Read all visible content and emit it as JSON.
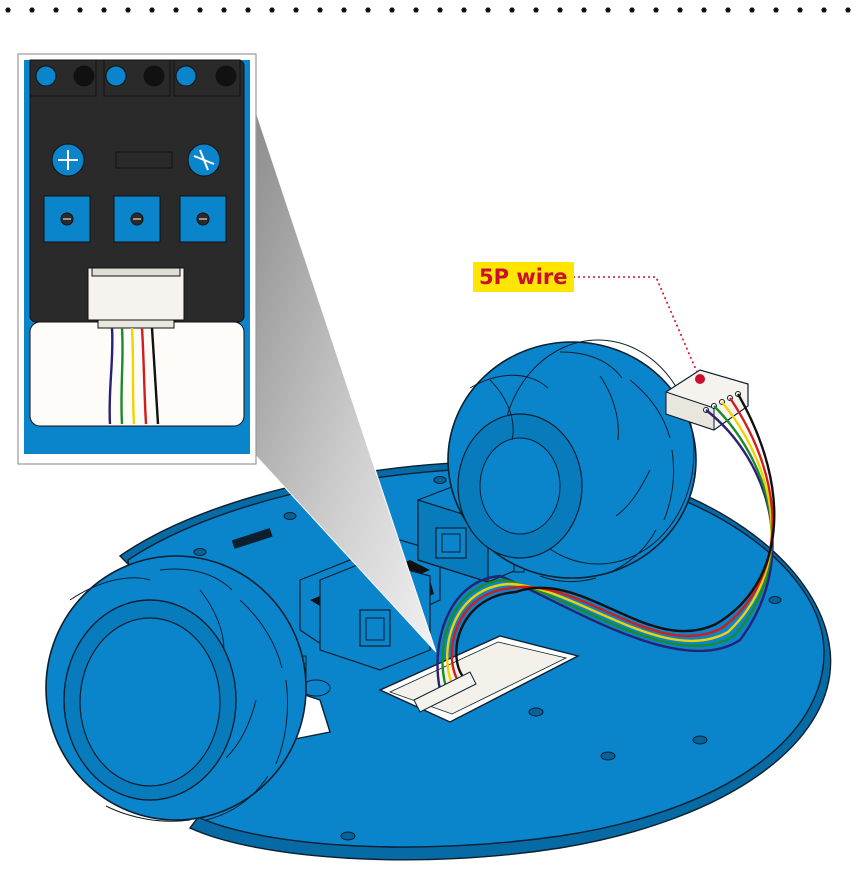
{
  "callout": {
    "label": "5P wire",
    "color": "#c8102e",
    "background": "#ffe500"
  },
  "colors": {
    "chassis_blue": "#0a85cc",
    "outline": "#0b1f2e",
    "module_dark": "#2a2a2a",
    "connector_white": "#f5f3ee"
  },
  "wire_colors": [
    "#2a2172",
    "#1a8a2a",
    "#f2d200",
    "#d11d1d",
    "#111111"
  ]
}
